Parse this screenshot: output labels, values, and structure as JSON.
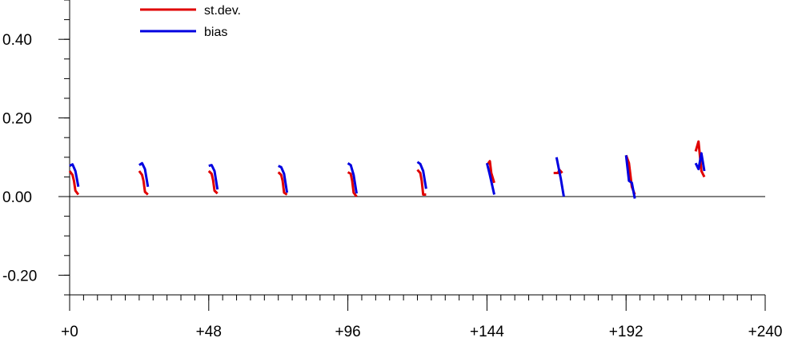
{
  "chart_data": {
    "type": "line",
    "title": "",
    "xlabel": "",
    "ylabel": "",
    "xlim": [
      0,
      240
    ],
    "ylim": [
      -0.25,
      0.5
    ],
    "x_ticks": [
      0,
      48,
      96,
      144,
      192,
      240
    ],
    "x_tick_labels": [
      "+0",
      "+48",
      "+96",
      "+144",
      "+192",
      "+240"
    ],
    "x_minor_step": 4.8,
    "y_ticks": [
      -0.2,
      0.0,
      0.2,
      0.4
    ],
    "y_tick_labels": [
      "-0.20",
      "0.00",
      "0.20",
      "0.40"
    ],
    "y_minor_step": 0.05,
    "grid": false,
    "zero_line": true,
    "legend_position": "top-left",
    "series": [
      {
        "name": "st.dev.",
        "color": "#e00000",
        "segments": [
          [
            [
              0,
              0.065
            ],
            [
              1,
              0.055
            ],
            [
              1.5,
              0.04
            ],
            [
              2,
              0.015
            ],
            [
              3,
              0.005
            ]
          ],
          [
            [
              24,
              0.065
            ],
            [
              25,
              0.055
            ],
            [
              25.5,
              0.04
            ],
            [
              26,
              0.012
            ],
            [
              27,
              0.005
            ]
          ],
          [
            [
              48,
              0.065
            ],
            [
              49,
              0.058
            ],
            [
              49.5,
              0.042
            ],
            [
              50,
              0.015
            ],
            [
              51,
              0.008
            ]
          ],
          [
            [
              72,
              0.062
            ],
            [
              73,
              0.055
            ],
            [
              73.5,
              0.04
            ],
            [
              74,
              0.01
            ],
            [
              75,
              0.005
            ]
          ],
          [
            [
              96,
              0.062
            ],
            [
              97,
              0.058
            ],
            [
              97.5,
              0.04
            ],
            [
              98,
              0.01
            ],
            [
              99,
              0.0
            ]
          ],
          [
            [
              120,
              0.068
            ],
            [
              121,
              0.06
            ],
            [
              121.5,
              0.04
            ],
            [
              122,
              0.005
            ],
            [
              123,
              0.005
            ]
          ],
          [
            [
              144,
              0.08
            ],
            [
              145,
              0.09
            ],
            [
              145.5,
              0.06
            ],
            [
              146.5,
              0.035
            ]
          ],
          [
            [
              167,
              0.06
            ],
            [
              168.5,
              0.06
            ],
            [
              169,
              0.068
            ],
            [
              170,
              0.06
            ]
          ],
          [
            [
              192,
              0.105
            ],
            [
              193,
              0.085
            ],
            [
              193.5,
              0.055
            ],
            [
              194,
              0.025
            ],
            [
              195,
              0.005
            ]
          ],
          [
            [
              216,
              0.115
            ],
            [
              217,
              0.14
            ],
            [
              218,
              0.065
            ],
            [
              219,
              0.05
            ]
          ]
        ]
      },
      {
        "name": "bias",
        "color": "#0000e0",
        "segments": [
          [
            [
              0,
              0.078
            ],
            [
              1,
              0.082
            ],
            [
              2,
              0.065
            ],
            [
              3,
              0.025
            ]
          ],
          [
            [
              24,
              0.08
            ],
            [
              25,
              0.085
            ],
            [
              26,
              0.07
            ],
            [
              27,
              0.025
            ]
          ],
          [
            [
              48,
              0.078
            ],
            [
              49,
              0.08
            ],
            [
              50,
              0.065
            ],
            [
              51,
              0.018
            ]
          ],
          [
            [
              72,
              0.078
            ],
            [
              73,
              0.075
            ],
            [
              74,
              0.058
            ],
            [
              75,
              0.01
            ]
          ],
          [
            [
              96,
              0.085
            ],
            [
              97,
              0.08
            ],
            [
              98,
              0.055
            ],
            [
              99,
              0.008
            ]
          ],
          [
            [
              120,
              0.088
            ],
            [
              121,
              0.083
            ],
            [
              122,
              0.065
            ],
            [
              123,
              0.02
            ]
          ],
          [
            [
              144,
              0.085
            ],
            [
              145,
              0.055
            ],
            [
              146.5,
              0.005
            ]
          ],
          [
            [
              168,
              0.1
            ],
            [
              169.5,
              0.045
            ],
            [
              170.5,
              0.0
            ]
          ],
          [
            [
              192,
              0.105
            ],
            [
              193,
              0.04
            ],
            [
              194,
              0.035
            ],
            [
              195,
              -0.005
            ]
          ],
          [
            [
              216,
              0.085
            ],
            [
              217,
              0.07
            ],
            [
              218,
              0.11
            ],
            [
              219,
              0.065
            ]
          ]
        ]
      }
    ]
  }
}
